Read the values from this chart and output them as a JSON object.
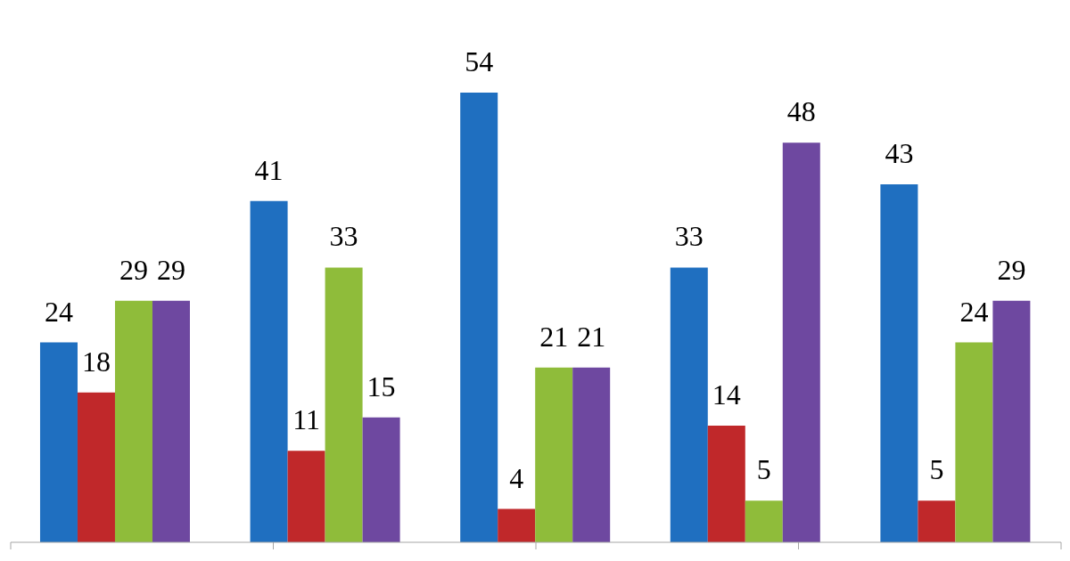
{
  "chart_data": {
    "type": "bar",
    "categories": [
      null,
      null,
      null,
      null,
      null
    ],
    "series": [
      {
        "color": "#1f6fc0",
        "values": [
          24,
          41,
          54,
          33,
          43
        ]
      },
      {
        "color": "#c0282a",
        "values": [
          18,
          11,
          4,
          14,
          5
        ]
      },
      {
        "color": "#8fbc3a",
        "values": [
          29,
          33,
          21,
          5,
          24
        ]
      },
      {
        "color": "#6e48a0",
        "values": [
          29,
          15,
          21,
          48,
          29
        ]
      }
    ],
    "data_labels": true
  }
}
